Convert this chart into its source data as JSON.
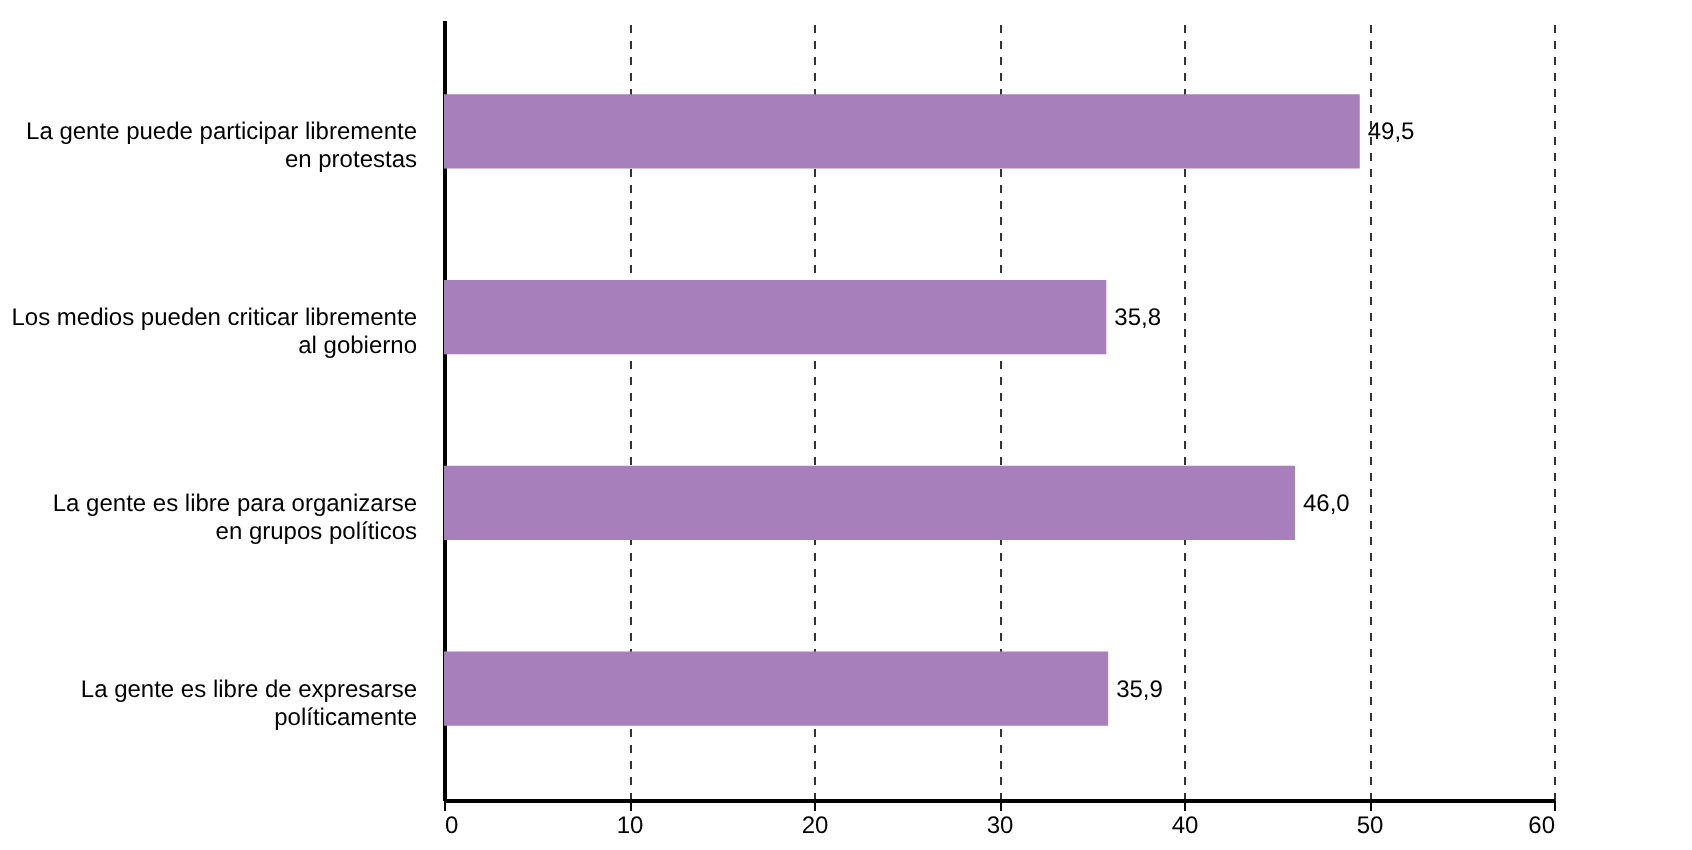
{
  "chart_data": {
    "type": "bar",
    "orientation": "horizontal",
    "categories": [
      "La gente puede participar libremente\nen protestas",
      "Los medios pueden criticar libremente\nal gobierno",
      "La gente es libre para organizarse\nen grupos políticos",
      "La gente es libre de expresarse\npolíticamente"
    ],
    "values": [
      49.5,
      35.8,
      46.0,
      35.9
    ],
    "value_labels": [
      "49,5",
      "35,8",
      "46,0",
      "35,9"
    ],
    "color": "#a67fbb",
    "xlim": [
      0,
      60
    ],
    "xticks": [
      0,
      10,
      20,
      30,
      40,
      50,
      60
    ],
    "grid": "x",
    "line_style": "dashed"
  }
}
